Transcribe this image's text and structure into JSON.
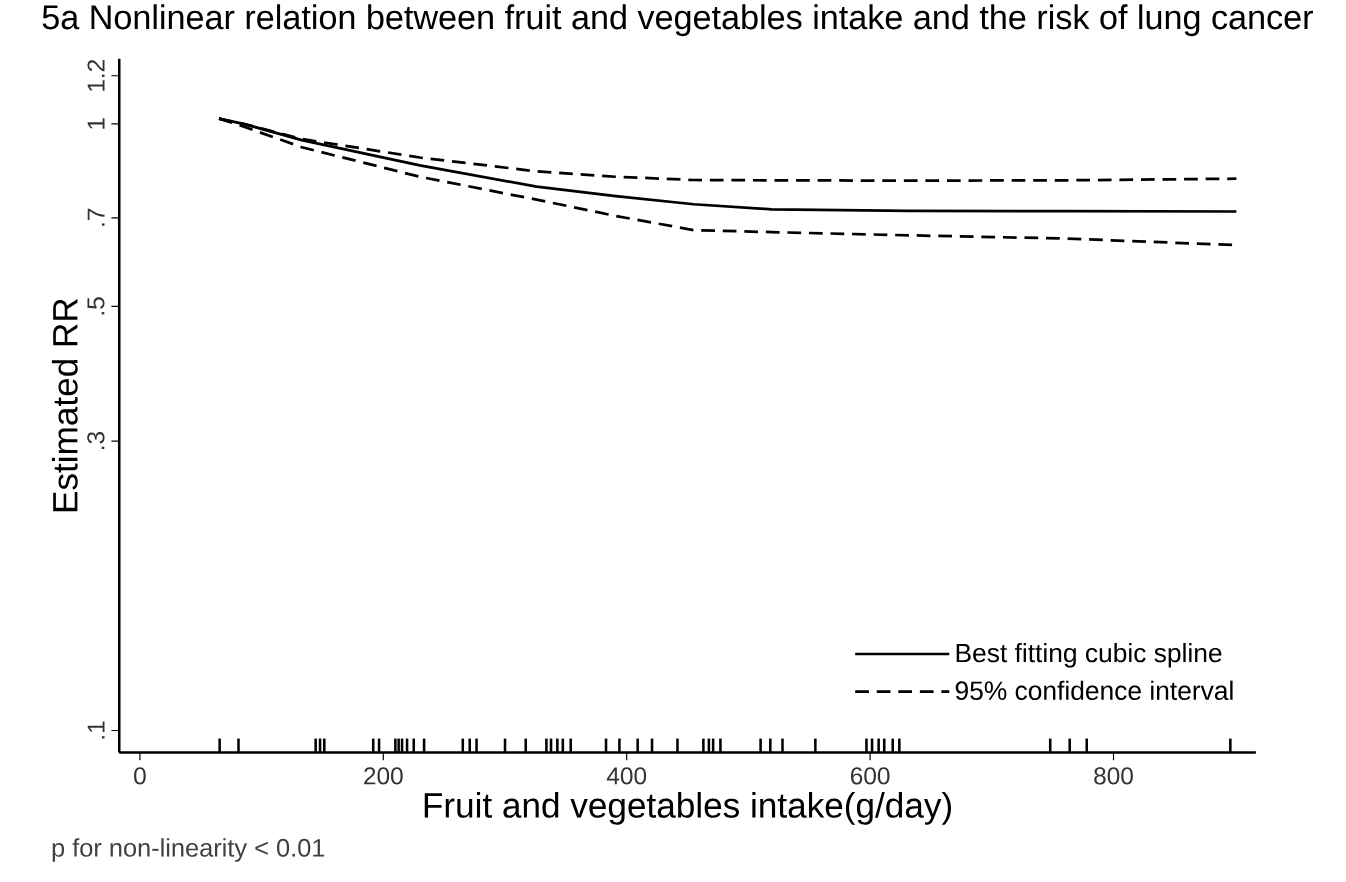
{
  "chart_data": {
    "type": "line",
    "title": "5a Nonlinear relation between fruit and vegetables intake and the risk of lung cancer",
    "xlabel": "Fruit and vegetables intake(g/day)",
    "ylabel": "Estimated RR",
    "annotations": [
      "p for non-linearity < 0.01"
    ],
    "log": "y",
    "legend": "bottom right",
    "xlim": [
      -17,
      917
    ],
    "ylim": [
      0.092,
      1.28
    ],
    "xticks": [
      0,
      200,
      400,
      600,
      800
    ],
    "yticks": [
      {
        "value": 0.1,
        "label": ".1"
      },
      {
        "value": 0.3,
        "label": ".3"
      },
      {
        "value": 0.5,
        "label": ".5"
      },
      {
        "value": 0.7,
        "label": ".7"
      },
      1,
      1.2
    ],
    "series": [
      {
        "name": "Best fitting cubic spline",
        "line_style": "solid",
        "color": "#000000",
        "x": [
          65,
          85,
          133,
          230,
          326,
          391,
          455,
          519,
          632,
          761,
          901
        ],
        "values": [
          1.02,
          1.0,
          0.94,
          0.854,
          0.788,
          0.76,
          0.737,
          0.723,
          0.719,
          0.718,
          0.717
        ]
      },
      {
        "name": "95% confidence interval",
        "line_style": "dashed",
        "color": "#000000",
        "x": [
          65,
          85,
          133,
          230,
          326,
          391,
          455,
          519,
          632,
          761,
          901
        ],
        "values": [
          1.02,
          1.0,
          0.944,
          0.88,
          0.835,
          0.818,
          0.808,
          0.807,
          0.806,
          0.807,
          0.812
        ]
      },
      {
        "line_style": "dashed",
        "color": "#000000",
        "x": [
          65,
          85,
          133,
          230,
          326,
          391,
          455,
          519,
          632,
          761,
          901
        ],
        "values": [
          1.02,
          0.99,
          0.915,
          0.818,
          0.75,
          0.705,
          0.668,
          0.663,
          0.655,
          0.647,
          0.631
        ]
      },
      {
        "type": "bar",
        "color": "#000000",
        "x": [
          65.5,
          81,
          144.4,
          148,
          151.5,
          191.7,
          196.5,
          209.9,
          212.6,
          215.4,
          219.5,
          225,
          233.5,
          265.3,
          271,
          276.6,
          300,
          317,
          334,
          337.8,
          343,
          347.5,
          354,
          383,
          394,
          409,
          420.8,
          441.7,
          463,
          467.5,
          471,
          477,
          510,
          518,
          528,
          555,
          597,
          601.6,
          607,
          611.6,
          618.6,
          624,
          748,
          764,
          778,
          896
        ],
        "values": [
          0.097,
          0.097,
          0.097,
          0.097,
          0.097,
          0.097,
          0.097,
          0.097,
          0.097,
          0.097,
          0.097,
          0.097,
          0.097,
          0.097,
          0.097,
          0.097,
          0.097,
          0.097,
          0.097,
          0.097,
          0.097,
          0.097,
          0.097,
          0.097,
          0.097,
          0.097,
          0.097,
          0.097,
          0.097,
          0.097,
          0.097,
          0.097,
          0.097,
          0.097,
          0.097,
          0.097,
          0.097,
          0.097,
          0.097,
          0.097,
          0.097,
          0.097,
          0.097,
          0.097,
          0.097,
          0.097
        ]
      }
    ]
  }
}
